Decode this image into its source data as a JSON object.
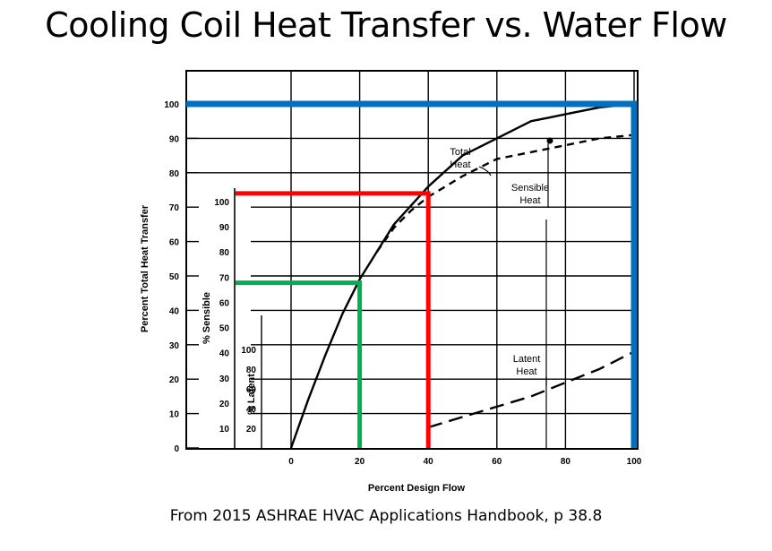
{
  "slide": {
    "title": "Cooling Coil Heat Transfer vs. Water Flow",
    "caption": "From 2015 ASHRAE HVAC Applications Handbook, p 38.8"
  },
  "chart_data": {
    "type": "line",
    "xlabel": "Percent Design Flow",
    "ylabel": "Percent Total Heat Transfer",
    "xlim": [
      0,
      100
    ],
    "ylim": [
      0,
      100
    ],
    "x_ticks": [
      "0",
      "20",
      "40",
      "60",
      "80",
      "100"
    ],
    "y_ticks": [
      "0",
      "10",
      "20",
      "30",
      "40",
      "50",
      "60",
      "70",
      "80",
      "90",
      "100"
    ],
    "inner_axes": {
      "sensible": {
        "label": "% Sensible",
        "ticks": [
          "10",
          "20",
          "30",
          "40",
          "50",
          "60",
          "70",
          "80",
          "90",
          "100"
        ]
      },
      "latent": {
        "label": "% Latent",
        "ticks": [
          "10",
          "20",
          "40",
          "60",
          "80",
          "100"
        ]
      }
    },
    "series": [
      {
        "name": "Total Heat",
        "style": "solid",
        "color": "#000000",
        "x": [
          0,
          5,
          10,
          15,
          20,
          30,
          40,
          50,
          60,
          70,
          75,
          80,
          90,
          100
        ],
        "y": [
          0,
          14,
          27,
          39,
          49,
          65,
          76,
          85,
          90,
          95,
          96,
          97,
          99,
          100
        ]
      },
      {
        "name": "Sensible Heat",
        "style": "dashed",
        "color": "#000000",
        "x": [
          25,
          30,
          35,
          40,
          50,
          60,
          70,
          80,
          90,
          100
        ],
        "y": [
          57,
          64,
          69,
          73,
          79,
          84,
          86,
          88,
          90,
          91
        ]
      },
      {
        "name": "Latent Heat",
        "style": "long-dash",
        "color": "#000000",
        "x": [
          40,
          50,
          60,
          70,
          80,
          90,
          100
        ],
        "y": [
          6,
          9,
          12,
          15,
          19,
          23,
          28
        ]
      }
    ],
    "annotations": [
      {
        "text": "Total",
        "text2": "Heat"
      },
      {
        "text": "Sensible",
        "text2": "Heat"
      },
      {
        "text": "Latent",
        "text2": "Heat"
      }
    ],
    "highlights": [
      {
        "color": "#0070C0",
        "flow": 100,
        "heat": 100
      },
      {
        "color": "#FF0000",
        "flow": 40,
        "heat": 74
      },
      {
        "color": "#00B050",
        "flow": 20,
        "heat": 48
      }
    ],
    "grid": true
  }
}
